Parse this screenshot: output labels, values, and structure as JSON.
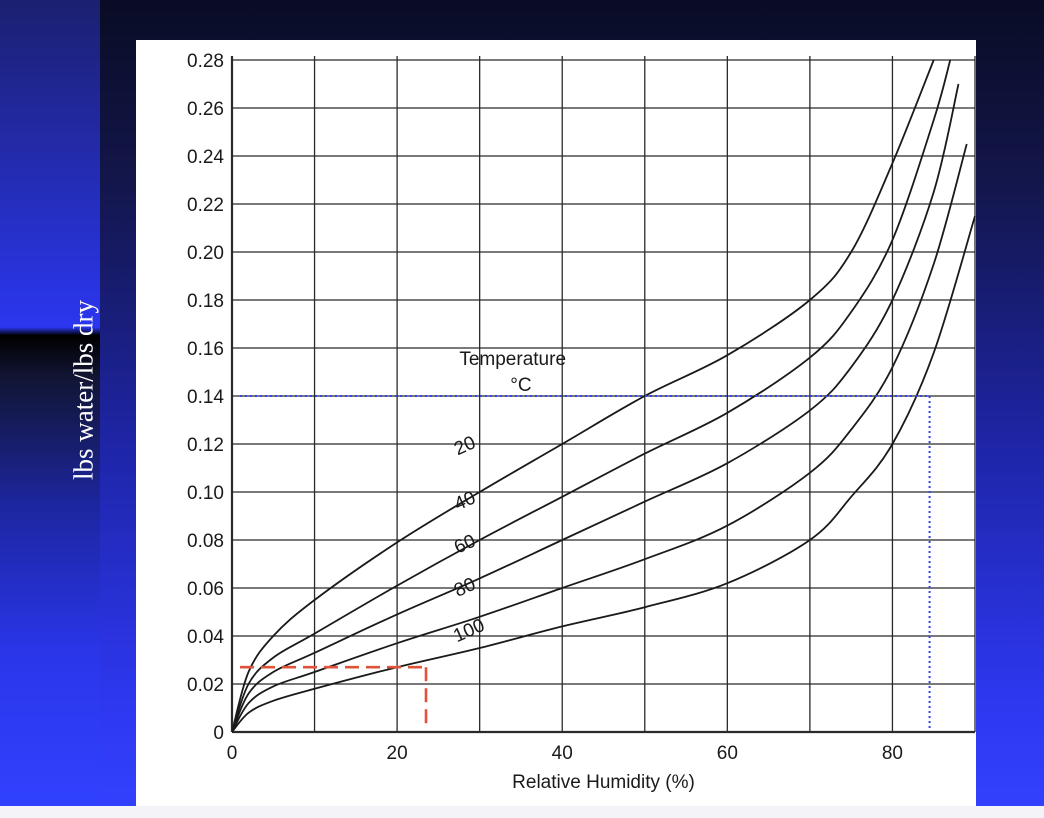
{
  "chart_data": {
    "type": "line",
    "title": "",
    "ylabel": "lbs water/lbs dry",
    "xlabel": "Relative Humidity (%)",
    "xlim": [
      0,
      90
    ],
    "ylim": [
      0,
      0.28
    ],
    "x_ticks": [
      0,
      20,
      40,
      60,
      80
    ],
    "x_tick_labels": [
      "0",
      "20",
      "40",
      "60",
      "80"
    ],
    "y_ticks": [
      0,
      0.02,
      0.04,
      0.06,
      0.08,
      0.1,
      0.12,
      0.14,
      0.16,
      0.18,
      0.2,
      0.22,
      0.24,
      0.26,
      0.28
    ],
    "y_tick_labels": [
      "0",
      "0.02",
      "0.04",
      "0.06",
      "0.08",
      "0.10",
      "0.12",
      "0.14",
      "0.16",
      "0.18",
      "0.20",
      "0.22",
      "0.24",
      "0.26",
      "0.28"
    ],
    "grid": true,
    "legend_title": "Temperature",
    "legend_unit": "°C",
    "series": [
      {
        "name": "20",
        "x": [
          0,
          2,
          5,
          10,
          20,
          30,
          40,
          50,
          60,
          70,
          75,
          80,
          85
        ],
        "y": [
          0,
          0.025,
          0.04,
          0.055,
          0.079,
          0.1,
          0.12,
          0.14,
          0.157,
          0.18,
          0.2,
          0.237,
          0.28
        ]
      },
      {
        "name": "40",
        "x": [
          0,
          2,
          5,
          10,
          20,
          30,
          40,
          50,
          60,
          70,
          75,
          80,
          85,
          87
        ],
        "y": [
          0,
          0.02,
          0.031,
          0.041,
          0.061,
          0.08,
          0.098,
          0.116,
          0.133,
          0.156,
          0.175,
          0.205,
          0.255,
          0.28
        ]
      },
      {
        "name": "60",
        "x": [
          0,
          2,
          5,
          10,
          20,
          30,
          40,
          50,
          60,
          70,
          75,
          80,
          85,
          88
        ],
        "y": [
          0,
          0.016,
          0.025,
          0.033,
          0.049,
          0.064,
          0.08,
          0.096,
          0.112,
          0.134,
          0.152,
          0.18,
          0.225,
          0.27
        ]
      },
      {
        "name": "80",
        "x": [
          0,
          2,
          5,
          10,
          20,
          30,
          40,
          50,
          60,
          70,
          75,
          80,
          85,
          89
        ],
        "y": [
          0,
          0.012,
          0.019,
          0.025,
          0.037,
          0.048,
          0.06,
          0.072,
          0.086,
          0.108,
          0.126,
          0.152,
          0.195,
          0.245
        ]
      },
      {
        "name": "100",
        "x": [
          0,
          2,
          5,
          10,
          20,
          30,
          40,
          50,
          60,
          70,
          75,
          80,
          85,
          90
        ],
        "y": [
          0,
          0.008,
          0.013,
          0.018,
          0.027,
          0.035,
          0.044,
          0.052,
          0.062,
          0.08,
          0.098,
          0.12,
          0.158,
          0.215
        ]
      }
    ],
    "reference_lines": [
      {
        "name": "red-dashed",
        "color": "#e0523a",
        "x": 23.5,
        "y": 0.027
      },
      {
        "name": "blue-dotted",
        "color": "#3344ee",
        "x": 84.5,
        "y": 0.14
      }
    ]
  },
  "colors": {
    "background_gradient_top": "#090c24",
    "background_gradient_bottom": "#3342ff",
    "curve": "#1a1a1a",
    "grid": "#2a2a2a",
    "red_ref": "#e0523a",
    "blue_ref": "#3344ee"
  }
}
